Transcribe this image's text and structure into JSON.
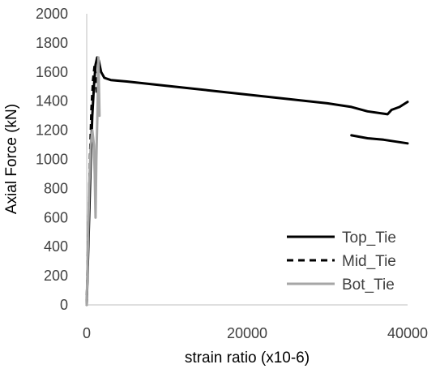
{
  "chart_data": {
    "type": "line",
    "xlabel": "strain ratio (x10-6)",
    "ylabel": "Axial Force (kN)",
    "xlim": [
      0,
      40000
    ],
    "ylim": [
      0,
      2000
    ],
    "xticks": [
      0,
      20000,
      40000
    ],
    "yticks": [
      0,
      200,
      400,
      600,
      800,
      1000,
      1200,
      1400,
      1600,
      1800,
      2000
    ],
    "grid": false,
    "legend_position": "bottom-right",
    "series": [
      {
        "name": "Top_Tie",
        "color": "#000000",
        "dash": "solid",
        "segments": [
          [
            [
              0,
              0
            ],
            [
              200,
              400
            ],
            [
              450,
              900
            ],
            [
              700,
              1300
            ],
            [
              900,
              1500
            ],
            [
              1100,
              1650
            ],
            [
              1300,
              1700
            ],
            [
              1500,
              1680
            ],
            [
              1800,
              1600
            ],
            [
              2200,
              1560
            ],
            [
              3000,
              1545
            ],
            [
              5000,
              1535
            ],
            [
              10000,
              1505
            ],
            [
              15000,
              1475
            ],
            [
              20000,
              1445
            ],
            [
              25000,
              1415
            ],
            [
              30000,
              1385
            ],
            [
              33000,
              1360
            ],
            [
              35000,
              1330
            ],
            [
              37500,
              1310
            ],
            [
              38000,
              1340
            ],
            [
              39000,
              1360
            ],
            [
              40000,
              1395
            ]
          ],
          [
            [
              33000,
              1165
            ],
            [
              35000,
              1145
            ],
            [
              37000,
              1135
            ],
            [
              40000,
              1110
            ]
          ]
        ]
      },
      {
        "name": "Mid_Tie",
        "color": "#000000",
        "dash": "dashed",
        "segments": [
          [
            [
              0,
              0
            ],
            [
              200,
              500
            ],
            [
              400,
              1000
            ],
            [
              600,
              1350
            ],
            [
              800,
              1550
            ],
            [
              1000,
              1650
            ],
            [
              1150,
              1550
            ],
            [
              1250,
              1450
            ]
          ]
        ]
      },
      {
        "name": "Bot_Tie",
        "color": "#a6a6a6",
        "dash": "solid",
        "segments": [
          [
            [
              0,
              0
            ],
            [
              150,
              400
            ],
            [
              300,
              800
            ],
            [
              500,
              1100
            ],
            [
              700,
              1200
            ],
            [
              900,
              1100
            ],
            [
              1000,
              900
            ],
            [
              1100,
              600
            ],
            [
              1200,
              1000
            ],
            [
              1350,
              1350
            ],
            [
              1450,
              1700
            ],
            [
              1550,
              1450
            ],
            [
              1600,
              1300
            ]
          ]
        ]
      }
    ]
  }
}
